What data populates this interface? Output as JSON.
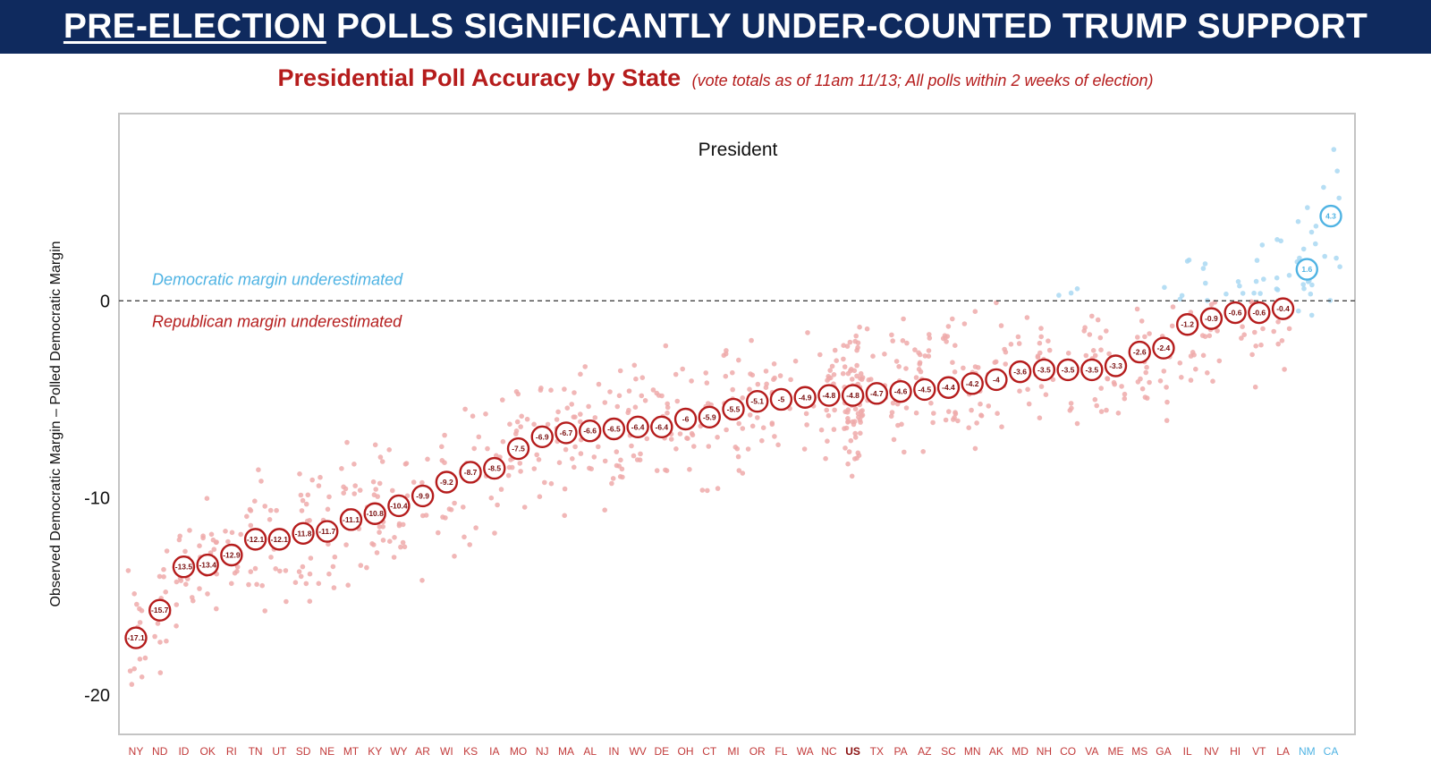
{
  "header": {
    "title_underlined": "PRE-ELECTION",
    "title_rest": " POLLS SIGNIFICANTLY UNDER-COUNTED TRUMP SUPPORT",
    "subtitle": "Presidential Poll Accuracy by State",
    "subtitle_note": "(vote totals as of 11am 11/13; All polls within 2 weeks of election)"
  },
  "colors": {
    "banner": "#0f2a5e",
    "republican": "#b51c1c",
    "republican_dot": "#efaaaa",
    "democratic": "#4fb3e3",
    "democratic_dot": "#a9d8f2"
  },
  "chart_data": {
    "type": "scatter",
    "title": "President",
    "xlabel": "",
    "ylabel": "Observed Democratic Margin – Polled Democratic Margin",
    "ylim": [
      -22,
      9.5
    ],
    "yticks": [
      0,
      -10,
      -20
    ],
    "grid": false,
    "zero_line": "dashed",
    "annotations": {
      "above": "Democratic margin underestimated",
      "below": "Republican margin underestimated"
    },
    "categories": [
      "NY",
      "ND",
      "ID",
      "OK",
      "RI",
      "TN",
      "UT",
      "SD",
      "NE",
      "MT",
      "KY",
      "WY",
      "AR",
      "WI",
      "KS",
      "IA",
      "MO",
      "NJ",
      "MA",
      "AL",
      "IN",
      "WV",
      "DE",
      "OH",
      "CT",
      "MI",
      "OR",
      "FL",
      "WA",
      "NC",
      "US",
      "TX",
      "PA",
      "AZ",
      "SC",
      "MN",
      "AK",
      "MD",
      "NH",
      "CO",
      "VA",
      "ME",
      "MS",
      "GA",
      "IL",
      "NV",
      "HI",
      "VT",
      "LA",
      "NM",
      "CA"
    ],
    "average_error": [
      -17.1,
      -15.7,
      -13.5,
      -13.4,
      -12.9,
      -12.1,
      -12.1,
      -11.8,
      -11.7,
      -11.1,
      -10.8,
      -10.4,
      -9.9,
      -9.2,
      -8.7,
      -8.5,
      -7.5,
      -6.9,
      -6.7,
      -6.6,
      -6.5,
      -6.4,
      -6.4,
      -6,
      -5.9,
      -5.5,
      -5.1,
      -5,
      -4.9,
      -4.8,
      -4.8,
      -4.7,
      -4.6,
      -4.5,
      -4.4,
      -4.2,
      -4,
      -3.6,
      -3.5,
      -3.5,
      -3.5,
      -3.3,
      -2.6,
      -2.4,
      -1.2,
      -0.9,
      -0.6,
      -0.6,
      -0.4,
      1.6,
      4.3
    ],
    "average_labels": [
      "-17.1",
      "-15.7",
      "-13.5",
      "-13.4",
      "-12.9",
      "-12.1",
      "-12.1",
      "-11.8",
      "-11.7",
      "-11.1",
      "-10.8",
      "-10.4",
      "-9.9",
      "-9.2",
      "-8.7",
      "-8.5",
      "-7.5",
      "-6.9",
      "-6.7",
      "-6.6",
      "-6.5",
      "-6.4",
      "-6.4",
      "-6",
      "-5.9",
      "-5.5",
      "-5.1",
      "-5",
      "-4.9",
      "-4.8",
      "-4.8",
      "-4.7",
      "-4.6",
      "-4.5",
      "-4.4",
      "-4.2",
      "-4",
      "-3.6",
      "-3.5",
      "-3.5",
      "-3.5",
      "-3.3",
      "-2.6",
      "-2.4",
      "-1.2",
      "-0.9",
      "-0.6",
      "-0.6",
      "-0.4",
      "1.6",
      "4.3"
    ],
    "bold_category": "US",
    "democratic_categories": [
      "NM",
      "CA"
    ],
    "individual_polls": "many individual poll errors per state, spread roughly ±4 points around each state average"
  }
}
